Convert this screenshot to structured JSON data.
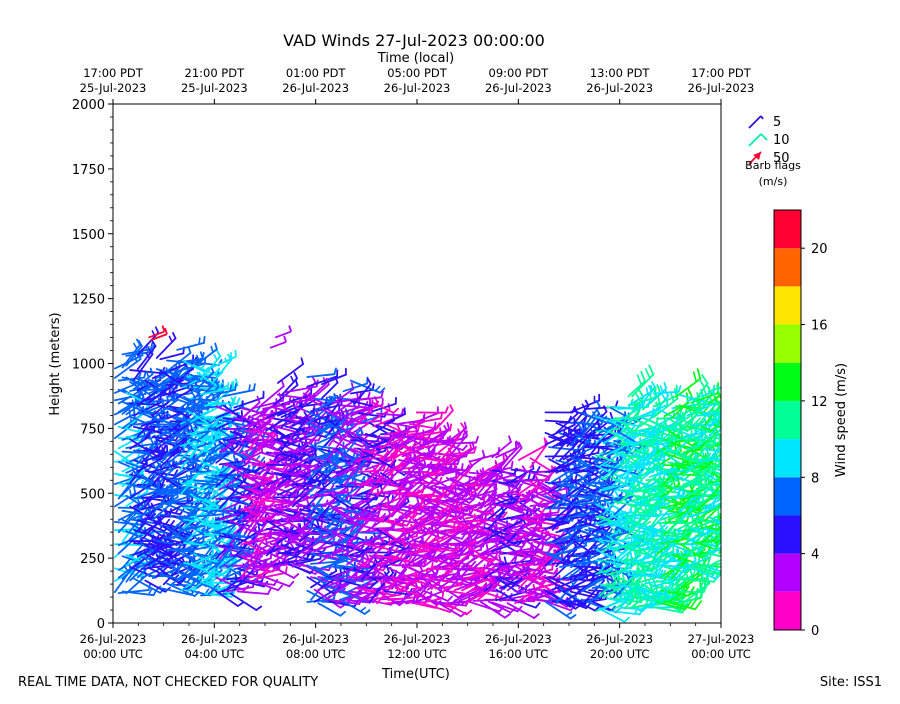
{
  "chart_data": {
    "type": "scatter",
    "title": "VAD Winds 27-Jul-2023 00:00:00",
    "top_axis_label": "Time (local)",
    "xlabel": "Time(UTC)",
    "ylabel": "Height (meters)",
    "ylim": [
      0,
      2000
    ],
    "y_ticks": [
      0,
      250,
      500,
      750,
      1000,
      1250,
      1500,
      1750,
      2000
    ],
    "y_tick_labels": [
      "0",
      "250",
      "500",
      "750",
      "1000",
      "1250",
      "1500",
      "1750",
      "2000"
    ],
    "x_range_utc_hours": [
      0,
      24
    ],
    "x_ticks_utc": [
      {
        "hour": 0,
        "line1": "26-Jul-2023",
        "line2": "00:00 UTC"
      },
      {
        "hour": 4,
        "line1": "26-Jul-2023",
        "line2": "04:00 UTC"
      },
      {
        "hour": 8,
        "line1": "26-Jul-2023",
        "line2": "08:00 UTC"
      },
      {
        "hour": 12,
        "line1": "26-Jul-2023",
        "line2": "12:00 UTC"
      },
      {
        "hour": 16,
        "line1": "26-Jul-2023",
        "line2": "16:00 UTC"
      },
      {
        "hour": 20,
        "line1": "26-Jul-2023",
        "line2": "20:00 UTC"
      },
      {
        "hour": 24,
        "line1": "27-Jul-2023",
        "line2": "00:00 UTC"
      }
    ],
    "x_ticks_local": [
      {
        "hour": 0,
        "line1": "17:00 PDT",
        "line2": "25-Jul-2023"
      },
      {
        "hour": 4,
        "line1": "21:00 PDT",
        "line2": "25-Jul-2023"
      },
      {
        "hour": 8,
        "line1": "01:00 PDT",
        "line2": "26-Jul-2023"
      },
      {
        "hour": 12,
        "line1": "05:00 PDT",
        "line2": "26-Jul-2023"
      },
      {
        "hour": 16,
        "line1": "09:00 PDT",
        "line2": "26-Jul-2023"
      },
      {
        "hour": 20,
        "line1": "13:00 PDT",
        "line2": "26-Jul-2023"
      },
      {
        "hour": 24,
        "line1": "17:00 PDT",
        "line2": "26-Jul-2023"
      }
    ],
    "barb_legend": {
      "entries": [
        {
          "label": "5",
          "color": "#2a10e6"
        },
        {
          "label": "10",
          "color": "#00f0a0"
        },
        {
          "label": "50",
          "color": "#ff0030"
        }
      ],
      "caption_line1": "Barb flags",
      "caption_line2": "(m/s)"
    },
    "colorbar": {
      "label": "Wind speed (m/s)",
      "range": [
        0,
        22
      ],
      "ticks": [
        0,
        4,
        8,
        12,
        16,
        20
      ],
      "tick_labels": [
        "0",
        "4",
        "8",
        "12",
        "16",
        "20"
      ],
      "bins": [
        {
          "from": 0,
          "to": 2,
          "color": "#ff00c8"
        },
        {
          "from": 2,
          "to": 4,
          "color": "#b400ff"
        },
        {
          "from": 4,
          "to": 6,
          "color": "#2a10ff"
        },
        {
          "from": 6,
          "to": 8,
          "color": "#0064ff"
        },
        {
          "from": 8,
          "to": 10,
          "color": "#00e6ff"
        },
        {
          "from": 10,
          "to": 12,
          "color": "#00ff96"
        },
        {
          "from": 12,
          "to": 14,
          "color": "#00ff14"
        },
        {
          "from": 14,
          "to": 16,
          "color": "#96ff00"
        },
        {
          "from": 16,
          "to": 18,
          "color": "#ffe600"
        },
        {
          "from": 18,
          "to": 20,
          "color": "#ff6400"
        },
        {
          "from": 20,
          "to": 22,
          "color": "#ff0032"
        }
      ]
    },
    "barb_regions": [
      {
        "t0": 0.0,
        "t1": 0.6,
        "h0": 100,
        "h1": 1100,
        "speeds": [
          6,
          7,
          9
        ]
      },
      {
        "t0": 0.6,
        "t1": 1.8,
        "h0": 150,
        "h1": 1050,
        "speeds": [
          4,
          5,
          6,
          7
        ]
      },
      {
        "t0": 1.8,
        "t1": 2.6,
        "h0": 120,
        "h1": 1080,
        "speeds": [
          5,
          6,
          7
        ]
      },
      {
        "t0": 2.6,
        "t1": 3.4,
        "h0": 110,
        "h1": 1070,
        "speeds": [
          6,
          7,
          8
        ]
      },
      {
        "t0": 3.4,
        "t1": 4.0,
        "h0": 90,
        "h1": 1000,
        "speeds": [
          7,
          8,
          9
        ]
      },
      {
        "t0": 4.0,
        "t1": 5.0,
        "h0": 100,
        "h1": 900,
        "speeds": [
          3,
          4,
          5,
          6
        ]
      },
      {
        "t0": 5.0,
        "t1": 6.0,
        "h0": 150,
        "h1": 900,
        "speeds": [
          1,
          2,
          3
        ]
      },
      {
        "t0": 6.0,
        "t1": 7.6,
        "h0": 200,
        "h1": 950,
        "speeds": [
          2,
          3,
          4,
          5
        ]
      },
      {
        "t0": 7.6,
        "t1": 8.6,
        "h0": 60,
        "h1": 980,
        "speeds": [
          3,
          4,
          6,
          7
        ]
      },
      {
        "t0": 8.6,
        "t1": 9.6,
        "h0": 60,
        "h1": 960,
        "speeds": [
          2,
          3,
          4,
          6
        ]
      },
      {
        "t0": 9.6,
        "t1": 10.8,
        "h0": 60,
        "h1": 880,
        "speeds": [
          1,
          2,
          3,
          4
        ]
      },
      {
        "t0": 10.8,
        "t1": 12.2,
        "h0": 60,
        "h1": 840,
        "speeds": [
          1,
          2,
          3
        ]
      },
      {
        "t0": 12.2,
        "t1": 13.4,
        "h0": 60,
        "h1": 760,
        "speeds": [
          1,
          2,
          3
        ]
      },
      {
        "t0": 13.4,
        "t1": 14.6,
        "h0": 60,
        "h1": 640,
        "speeds": [
          1,
          2,
          3
        ]
      },
      {
        "t0": 14.6,
        "t1": 15.8,
        "h0": 60,
        "h1": 660,
        "speeds": [
          2,
          3,
          4
        ]
      },
      {
        "t0": 15.8,
        "t1": 17.0,
        "h0": 60,
        "h1": 660,
        "speeds": [
          1,
          2,
          3
        ]
      },
      {
        "t0": 17.0,
        "t1": 18.0,
        "h0": 60,
        "h1": 840,
        "speeds": [
          4,
          5,
          6
        ]
      },
      {
        "t0": 18.0,
        "t1": 19.0,
        "h0": 60,
        "h1": 840,
        "speeds": [
          4,
          5,
          6,
          7
        ]
      },
      {
        "t0": 19.0,
        "t1": 20.0,
        "h0": 30,
        "h1": 900,
        "speeds": [
          7,
          8,
          9,
          10
        ]
      },
      {
        "t0": 20.0,
        "t1": 21.4,
        "h0": 30,
        "h1": 900,
        "speeds": [
          8,
          9,
          10,
          11
        ]
      },
      {
        "t0": 21.4,
        "t1": 22.6,
        "h0": 60,
        "h1": 900,
        "speeds": [
          9,
          10,
          11,
          12,
          13
        ]
      },
      {
        "t0": 22.6,
        "t1": 24.0,
        "h0": 200,
        "h1": 920,
        "speeds": [
          9,
          10,
          11,
          12
        ]
      }
    ]
  },
  "footer": {
    "left_note": "REAL TIME DATA, NOT CHECKED FOR QUALITY",
    "site": "Site: ISS1"
  }
}
